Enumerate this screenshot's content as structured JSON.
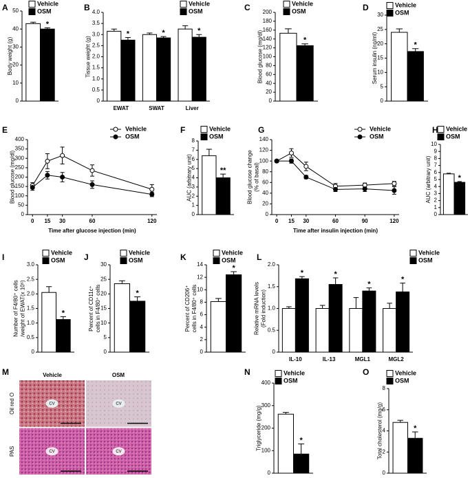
{
  "chart_data": [
    {
      "type": "bar",
      "label": "A",
      "ylabel": "Body weight (g)",
      "ylim": [
        0,
        50
      ],
      "yticks": [
        0,
        10,
        20,
        30,
        40,
        50
      ],
      "series": [
        {
          "name": "Vehicle",
          "color": "#ffffff",
          "values": [
            43
          ],
          "errors": [
            0.8
          ],
          "sig": [
            null
          ]
        },
        {
          "name": "OSM",
          "color": "#000000",
          "values": [
            40
          ],
          "errors": [
            0.7
          ],
          "sig": [
            "*"
          ]
        }
      ]
    },
    {
      "type": "bar",
      "label": "B",
      "ylabel": "Tissue weight (g)",
      "categories": [
        "EWAT",
        "SWAT",
        "Liver"
      ],
      "ylim": [
        0,
        4
      ],
      "yticks": [
        0,
        0.5,
        {
          "value": 1,
          "label": "1.0"
        },
        1.5,
        {
          "value": 2,
          "label": "2.0"
        },
        2.5,
        {
          "value": 3,
          "label": "3.0"
        },
        3.5,
        {
          "value": 4,
          "label": "4.0"
        }
      ],
      "series": [
        {
          "name": "Vehicle",
          "color": "#ffffff",
          "values": [
            3.15,
            3.0,
            3.25
          ],
          "errors": [
            0.1,
            0.07,
            0.15
          ],
          "sig": [
            null,
            null,
            null
          ]
        },
        {
          "name": "OSM",
          "color": "#000000",
          "values": [
            2.75,
            2.85,
            2.88
          ],
          "errors": [
            0.12,
            0.06,
            0.12
          ],
          "sig": [
            "*",
            "*",
            "*"
          ]
        }
      ]
    },
    {
      "type": "bar",
      "label": "C",
      "ylabel": "Blood glucose (mg/dl)",
      "ylim": [
        0,
        200
      ],
      "yticks": [
        0,
        20,
        40,
        60,
        80,
        100,
        120,
        140,
        160,
        180,
        200
      ],
      "series": [
        {
          "name": "Vehicle",
          "color": "#ffffff",
          "values": [
            153
          ],
          "errors": [
            10
          ],
          "sig": [
            null
          ]
        },
        {
          "name": "OSM",
          "color": "#000000",
          "values": [
            125
          ],
          "errors": [
            4
          ],
          "sig": [
            "*"
          ]
        }
      ]
    },
    {
      "type": "bar",
      "label": "D",
      "ylabel": "Serum insulin (ng/ml)",
      "ylim": [
        0,
        30
      ],
      "yticks": [
        0,
        5,
        10,
        15,
        20,
        25,
        30
      ],
      "series": [
        {
          "name": "Vehicle",
          "color": "#ffffff",
          "values": [
            24
          ],
          "errors": [
            1.2
          ],
          "sig": [
            null
          ]
        },
        {
          "name": "OSM",
          "color": "#000000",
          "values": [
            17.3
          ],
          "errors": [
            1.0
          ],
          "sig": [
            "*"
          ]
        }
      ]
    },
    {
      "type": "line",
      "label": "E",
      "ylabel": "Blood glucose (mg/dl)",
      "xlabel": "Time after glucose injection (min)",
      "x": [
        0,
        15,
        30,
        60,
        120
      ],
      "xlim": [
        -5,
        125
      ],
      "xticks": [
        0,
        15,
        30,
        60,
        120
      ],
      "ylim": [
        0,
        400
      ],
      "yticks": [
        0,
        50,
        100,
        150,
        200,
        250,
        300,
        350,
        400
      ],
      "series": [
        {
          "name": "Vehicle",
          "color": "#ffffff",
          "values": [
            155,
            285,
            315,
            235,
            135
          ],
          "errors": [
            15,
            40,
            45,
            30,
            25
          ]
        },
        {
          "name": "OSM",
          "color": "#000000",
          "values": [
            145,
            210,
            200,
            160,
            108
          ],
          "errors": [
            15,
            20,
            25,
            20,
            12
          ]
        }
      ]
    },
    {
      "type": "bar",
      "label": "F",
      "ylabel": "AUC (arbitrary unit)",
      "ylim": [
        0,
        8
      ],
      "yticks": [
        0,
        1,
        2,
        3,
        4,
        5,
        6,
        7,
        8
      ],
      "series": [
        {
          "name": "Vehicle",
          "color": "#ffffff",
          "values": [
            6.4
          ],
          "errors": [
            0.7
          ],
          "sig": [
            null
          ]
        },
        {
          "name": "OSM",
          "color": "#000000",
          "values": [
            4.0
          ],
          "errors": [
            0.4
          ],
          "sig": [
            "**"
          ]
        }
      ]
    },
    {
      "type": "line",
      "label": "G",
      "ylabel": [
        "Blood glucose change",
        "(% of basal)"
      ],
      "xlabel": "Time after insulin injection (min)",
      "x": [
        0,
        15,
        30,
        60,
        90,
        120
      ],
      "xlim": [
        -5,
        125
      ],
      "xticks": [
        0,
        15,
        30,
        60,
        90,
        120
      ],
      "ylim": [
        0,
        140
      ],
      "yticks": [
        0,
        20,
        40,
        60,
        80,
        100,
        120,
        140
      ],
      "series": [
        {
          "name": "Vehicle",
          "color": "#ffffff",
          "values": [
            100,
            115,
            90,
            53,
            55,
            58
          ],
          "errors": [
            2,
            8,
            8,
            5,
            4,
            4
          ]
        },
        {
          "name": "OSM",
          "color": "#000000",
          "values": [
            100,
            100,
            70,
            47,
            48,
            45
          ],
          "errors": [
            2,
            4,
            3,
            4,
            5,
            7
          ]
        }
      ]
    },
    {
      "type": "bar",
      "label": "H",
      "ylabel": "AUC (arbitrary unit)",
      "ylim": [
        0,
        10
      ],
      "yticks": [
        0,
        1,
        2,
        3,
        4,
        5,
        6,
        7,
        8,
        9,
        10
      ],
      "series": [
        {
          "name": "Vehicle",
          "color": "#ffffff",
          "values": [
            5.8
          ],
          "errors": [
            0.1
          ],
          "sig": [
            null
          ]
        },
        {
          "name": "OSM",
          "color": "#000000",
          "values": [
            4.6
          ],
          "errors": [
            0.1
          ],
          "sig": [
            "*"
          ]
        }
      ]
    },
    {
      "type": "bar",
      "label": "I",
      "ylabel": [
        "Number of F4/80⁺ cells",
        "/weight of EWAT(x 10⁶)"
      ],
      "ylim": [
        0,
        3
      ],
      "yticks": [
        0,
        0.5,
        {
          "value": 1,
          "label": "1.0"
        },
        1.5,
        {
          "value": 2,
          "label": "2.0"
        },
        2.5,
        {
          "value": 3,
          "label": "3.0"
        }
      ],
      "series": [
        {
          "name": "Vehicle",
          "color": "#ffffff",
          "values": [
            2.05
          ],
          "errors": [
            0.2
          ],
          "sig": [
            null
          ]
        },
        {
          "name": "OSM",
          "color": "#000000",
          "values": [
            1.12
          ],
          "errors": [
            0.1
          ],
          "sig": [
            "*"
          ]
        }
      ]
    },
    {
      "type": "bar",
      "label": "J",
      "ylabel": [
        "Percent of CD11c⁺",
        "cells in F4/80⁺ cells"
      ],
      "ylim": [
        0,
        30
      ],
      "yticks": [
        0,
        5,
        10,
        15,
        20,
        25,
        30
      ],
      "series": [
        {
          "name": "Vehicle",
          "color": "#ffffff",
          "values": [
            23.5
          ],
          "errors": [
            1.0
          ],
          "sig": [
            null
          ]
        },
        {
          "name": "OSM",
          "color": "#000000",
          "values": [
            17.5
          ],
          "errors": [
            1.5
          ],
          "sig": [
            "*"
          ]
        }
      ]
    },
    {
      "type": "bar",
      "label": "K",
      "ylabel": [
        "Percent of CD206⁺",
        "cells in F4/80⁺ cells"
      ],
      "ylim": [
        0,
        14
      ],
      "yticks": [
        0,
        2,
        4,
        6,
        8,
        10,
        12,
        14
      ],
      "series": [
        {
          "name": "Vehicle",
          "color": "#ffffff",
          "values": [
            8.1
          ],
          "errors": [
            0.5
          ],
          "sig": [
            null
          ]
        },
        {
          "name": "OSM",
          "color": "#000000",
          "values": [
            12.4
          ],
          "errors": [
            0.5
          ],
          "sig": [
            "*"
          ]
        }
      ]
    },
    {
      "type": "bar",
      "label": "L",
      "ylabel": [
        "Relative mRNA levels",
        "(Fold induction)"
      ],
      "categories": [
        "IL-10",
        "IL-13",
        "MGL1",
        "MGL2"
      ],
      "ylim": [
        0,
        2
      ],
      "yticks": [
        0,
        0.5,
        {
          "value": 1,
          "label": "1.0"
        },
        1.5,
        {
          "value": 2,
          "label": "2.0"
        }
      ],
      "series": [
        {
          "name": "Vehicle",
          "color": "#ffffff",
          "values": [
            1.0,
            1.0,
            1.0,
            1.0
          ],
          "errors": [
            0.04,
            0.07,
            0.25,
            0.12
          ],
          "sig": [
            null,
            null,
            null,
            null
          ]
        },
        {
          "name": "OSM",
          "color": "#000000",
          "values": [
            1.68,
            1.55,
            1.4,
            1.38
          ],
          "errors": [
            0.05,
            0.15,
            0.07,
            0.2
          ],
          "sig": [
            "*",
            "*",
            "*",
            "*"
          ]
        }
      ]
    },
    {
      "type": "image",
      "label": "M",
      "columns": [
        "Vehicle",
        "OSM"
      ],
      "rows": [
        "Oil red O",
        "PAS"
      ],
      "annotation": "CV"
    },
    {
      "type": "bar",
      "label": "N",
      "ylabel": "Triglyceride (mg/g)",
      "ylim": [
        0,
        400
      ],
      "yticks": [
        0,
        100,
        200,
        300,
        400
      ],
      "series": [
        {
          "name": "Vehicle",
          "color": "#ffffff",
          "values": [
            262
          ],
          "errors": [
            8
          ],
          "sig": [
            null
          ]
        },
        {
          "name": "OSM",
          "color": "#000000",
          "values": [
            85
          ],
          "errors": [
            45
          ],
          "sig": [
            "*"
          ]
        }
      ]
    },
    {
      "type": "bar",
      "label": "O",
      "ylabel": "Total cholesterol (mg/g)",
      "ylim": [
        0,
        8
      ],
      "yticks": [
        0,
        2,
        4,
        6,
        8
      ],
      "series": [
        {
          "name": "Vehicle",
          "color": "#ffffff",
          "values": [
            4.8
          ],
          "errors": [
            0.2
          ],
          "sig": [
            null
          ]
        },
        {
          "name": "OSM",
          "color": "#000000",
          "values": [
            3.3
          ],
          "errors": [
            0.6
          ],
          "sig": [
            "*"
          ]
        }
      ]
    }
  ]
}
